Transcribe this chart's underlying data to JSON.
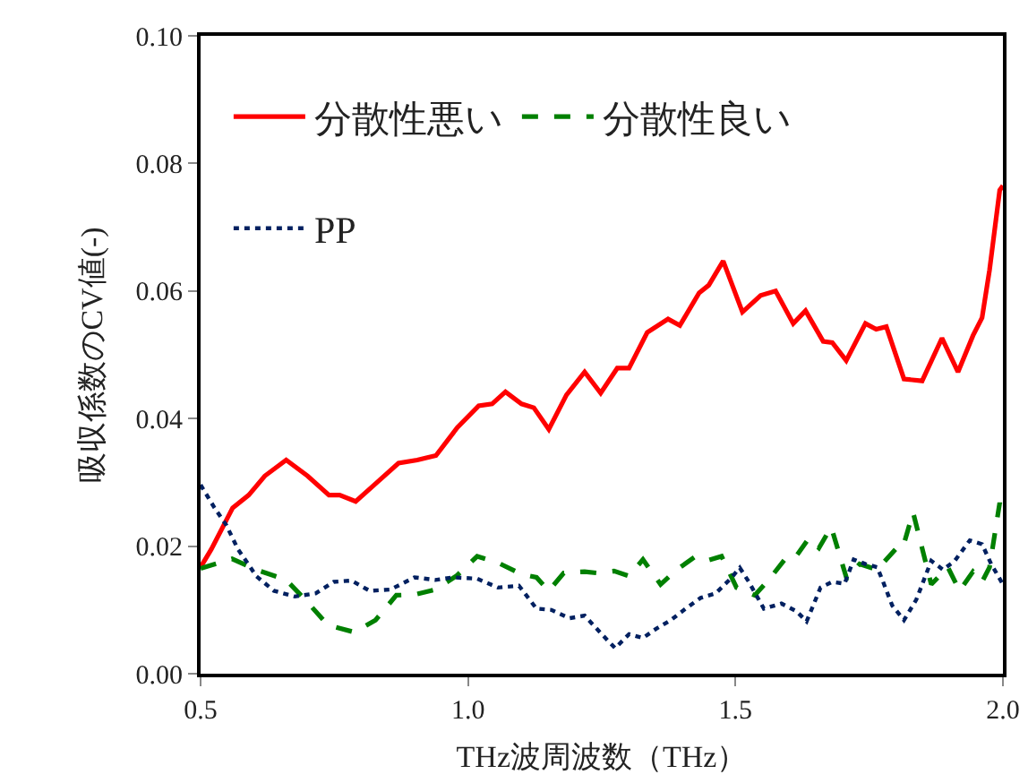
{
  "chart_data": {
    "type": "line",
    "xlabel": "THz波周波数（THz）",
    "ylabel": "吸収係数のCV値(-)",
    "xlim": [
      0.5,
      2.0
    ],
    "xticks": [
      0.5,
      {
        "value": 1.0,
        "label": "1.0"
      },
      1.5,
      {
        "value": 2.0,
        "label": "2.0"
      }
    ],
    "ylim": [
      0,
      0.1
    ],
    "yticks": [
      {
        "value": 0,
        "label": "0.00"
      },
      {
        "value": 0.02,
        "label": "0.02"
      },
      {
        "value": 0.04,
        "label": "0.04"
      },
      {
        "value": 0.06,
        "label": "0.06"
      },
      {
        "value": 0.08,
        "label": "0.08"
      },
      {
        "value": 0.1,
        "label": "0.10"
      }
    ],
    "legend": "top left",
    "series": [
      {
        "name": "分散性悪い",
        "color": "#ff0000",
        "line_style": "solid",
        "x": [
          0.5,
          0.52,
          0.56,
          0.59,
          0.62,
          0.66,
          0.7,
          0.74,
          0.76,
          0.79,
          0.83,
          0.87,
          0.905,
          0.94,
          0.98,
          1.02,
          1.045,
          1.07,
          1.1,
          1.123,
          1.151,
          1.184,
          1.218,
          1.248,
          1.279,
          1.301,
          1.335,
          1.374,
          1.396,
          1.432,
          1.45,
          1.477,
          1.513,
          1.547,
          1.575,
          1.608,
          1.631,
          1.664,
          1.681,
          1.707,
          1.743,
          1.763,
          1.782,
          1.815,
          1.849,
          1.886,
          1.916,
          1.944,
          1.961,
          1.975,
          1.994,
          2.0
        ],
        "values": [
          0.0167,
          0.0195,
          0.026,
          0.028,
          0.031,
          0.0335,
          0.031,
          0.028,
          0.028,
          0.027,
          0.03,
          0.033,
          0.0335,
          0.0342,
          0.0386,
          0.042,
          0.0423,
          0.0442,
          0.0423,
          0.0417,
          0.0383,
          0.0437,
          0.0473,
          0.044,
          0.0479,
          0.0479,
          0.0535,
          0.0556,
          0.0546,
          0.0597,
          0.0609,
          0.0647,
          0.0567,
          0.0593,
          0.06,
          0.0549,
          0.0569,
          0.0521,
          0.0519,
          0.0491,
          0.0549,
          0.054,
          0.0544,
          0.0462,
          0.0459,
          0.0526,
          0.0473,
          0.053,
          0.0558,
          0.0633,
          0.0758,
          0.0765
        ]
      },
      {
        "name": "分散性良い",
        "color": "#008000",
        "line_style": "dashed",
        "x": [
          0.5,
          0.559,
          0.604,
          0.66,
          0.699,
          0.738,
          0.788,
          0.827,
          0.866,
          0.9,
          0.939,
          0.978,
          1.017,
          1.056,
          1.1,
          1.128,
          1.151,
          1.179,
          1.218,
          1.24,
          1.273,
          1.301,
          1.327,
          1.36,
          1.39,
          1.424,
          1.446,
          1.474,
          1.502,
          1.536,
          1.564,
          1.592,
          1.609,
          1.637,
          1.656,
          1.679,
          1.708,
          1.732,
          1.765,
          1.799,
          1.812,
          1.832,
          1.866,
          1.897,
          1.919,
          1.944,
          1.961,
          1.975,
          1.994,
          2.0
        ],
        "values": [
          0.0165,
          0.018,
          0.0163,
          0.0147,
          0.0113,
          0.0076,
          0.0065,
          0.0084,
          0.0123,
          0.0124,
          0.0132,
          0.0153,
          0.0184,
          0.0174,
          0.0156,
          0.0151,
          0.013,
          0.0158,
          0.016,
          0.0158,
          0.0161,
          0.0153,
          0.0179,
          0.014,
          0.0163,
          0.0183,
          0.0177,
          0.0184,
          0.0135,
          0.0123,
          0.0149,
          0.0179,
          0.0179,
          0.0212,
          0.0197,
          0.023,
          0.0149,
          0.0172,
          0.0163,
          0.0195,
          0.0195,
          0.0253,
          0.014,
          0.0167,
          0.013,
          0.016,
          0.0144,
          0.0167,
          0.0268,
          0.0242
        ]
      },
      {
        "name": "PP",
        "color": "#002060",
        "line_style": "dotted",
        "x": [
          0.5,
          0.526,
          0.548,
          0.57,
          0.593,
          0.604,
          0.637,
          0.676,
          0.715,
          0.749,
          0.782,
          0.816,
          0.855,
          0.9,
          0.939,
          0.972,
          1.017,
          1.056,
          1.095,
          1.128,
          1.156,
          1.19,
          1.218,
          1.25,
          1.275,
          1.301,
          1.327,
          1.351,
          1.379,
          1.407,
          1.435,
          1.463,
          1.491,
          1.508,
          1.525,
          1.553,
          1.586,
          1.614,
          1.633,
          1.659,
          1.681,
          1.704,
          1.721,
          1.743,
          1.765,
          1.776,
          1.793,
          1.815,
          1.838,
          1.866,
          1.888,
          1.91,
          1.938,
          1.961,
          1.978,
          2.0
        ],
        "values": [
          0.0296,
          0.026,
          0.0233,
          0.0195,
          0.0167,
          0.0153,
          0.013,
          0.0121,
          0.0126,
          0.0144,
          0.0146,
          0.013,
          0.0132,
          0.0151,
          0.0147,
          0.0151,
          0.0149,
          0.0135,
          0.0138,
          0.0102,
          0.01,
          0.0087,
          0.0091,
          0.0062,
          0.004,
          0.0062,
          0.0056,
          0.007,
          0.0084,
          0.0102,
          0.0119,
          0.0126,
          0.0149,
          0.0166,
          0.0144,
          0.0102,
          0.011,
          0.0098,
          0.0082,
          0.0135,
          0.0144,
          0.0141,
          0.0179,
          0.0172,
          0.0167,
          0.0144,
          0.0107,
          0.0084,
          0.0116,
          0.0177,
          0.0163,
          0.0177,
          0.0209,
          0.0203,
          0.0172,
          0.014
        ]
      }
    ]
  }
}
